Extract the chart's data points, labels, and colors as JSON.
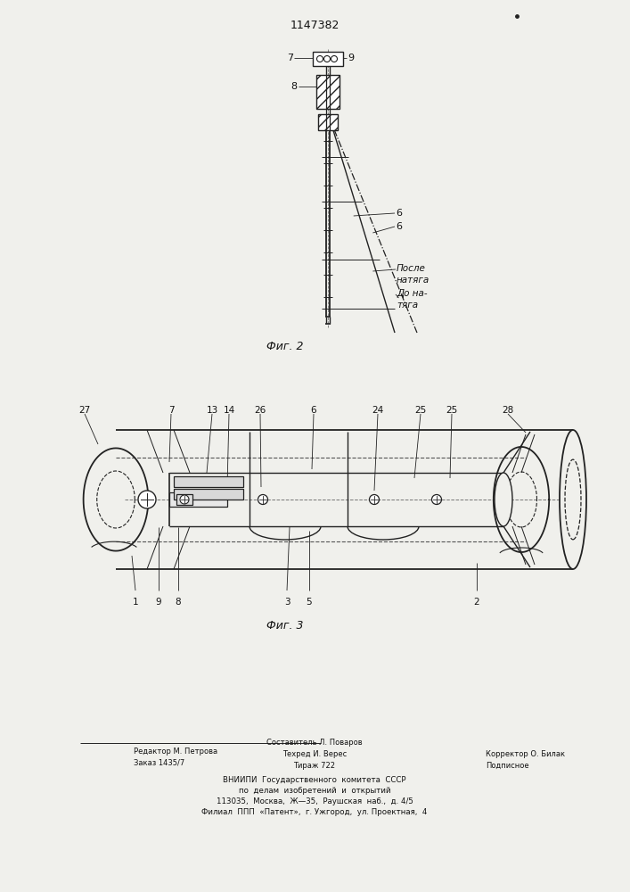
{
  "title": "1147382",
  "bg_color": "#f0f0ec",
  "fig2_label": "Фиг. 2",
  "fig3_label": "Фиг. 3",
  "lc": "#222222",
  "tc": "#111111"
}
